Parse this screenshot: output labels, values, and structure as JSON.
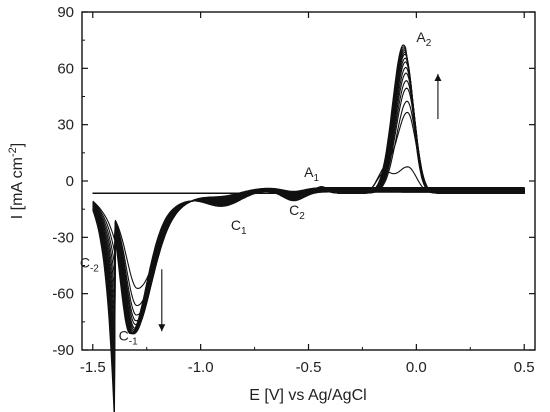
{
  "chart_data": {
    "type": "line",
    "title": "",
    "xlabel": "E [V] vs Ag/AgCl",
    "ylabel": "I [mA cm",
    "ylabel_sup": "-2",
    "ylabel_close": "]",
    "xlim": [
      -1.55,
      0.55
    ],
    "ylim": [
      -90,
      90
    ],
    "xticks": [
      -1.5,
      -1.0,
      -0.5,
      0.0,
      0.5
    ],
    "xtick_labels": [
      "-1.5",
      "-1.0",
      "-0.5",
      "0.0",
      "0.5"
    ],
    "yticks": [
      -90,
      -60,
      -30,
      0,
      30,
      60,
      90
    ],
    "ytick_labels": [
      "-90",
      "-60",
      "-30",
      "0",
      "30",
      "60",
      "90"
    ],
    "grid": false,
    "legend": "none",
    "line_color": "#111111",
    "series_note": "repeated cyclic voltammogram scans; amplitude increases with cycle number",
    "cycles": [
      {
        "cathodic_peak": -32,
        "anodic_peak": 18
      },
      {
        "cathodic_peak": -42,
        "anodic_peak": 47
      },
      {
        "cathodic_peak": -48,
        "anodic_peak": 53
      },
      {
        "cathodic_peak": -52,
        "anodic_peak": 60
      },
      {
        "cathodic_peak": -55,
        "anodic_peak": 64
      },
      {
        "cathodic_peak": -58,
        "anodic_peak": 68
      },
      {
        "cathodic_peak": -60,
        "anodic_peak": 71
      },
      {
        "cathodic_peak": -62,
        "anodic_peak": 74
      },
      {
        "cathodic_peak": -64,
        "anodic_peak": 76
      },
      {
        "cathodic_peak": -65,
        "anodic_peak": 78
      },
      {
        "cathodic_peak": -66,
        "anodic_peak": 79
      },
      {
        "cathodic_peak": -67,
        "anodic_peak": 80
      },
      {
        "cathodic_peak": -68,
        "anodic_peak": 81
      },
      {
        "cathodic_peak": -69,
        "anodic_peak": 82
      },
      {
        "cathodic_peak": -70,
        "anodic_peak": 83
      }
    ],
    "annotations": [
      {
        "main": "A",
        "sub": "2",
        "x": 0.0,
        "y": 74
      },
      {
        "main": "A",
        "sub": "1",
        "x": -0.52,
        "y": 2
      },
      {
        "main": "C",
        "sub": "1",
        "x": -0.86,
        "y": -26
      },
      {
        "main": "C",
        "sub": "2",
        "x": -0.59,
        "y": -18
      },
      {
        "main": "C",
        "sub": "-2",
        "x": -1.56,
        "y": -46
      },
      {
        "main": "C",
        "sub": "-1",
        "x": -1.38,
        "y": -85
      }
    ],
    "arrows": [
      {
        "name": "down",
        "x": -1.18,
        "y_from": -47,
        "y_to": -80
      },
      {
        "name": "up",
        "x": 0.1,
        "y_from": 33,
        "y_to": 57
      }
    ]
  }
}
